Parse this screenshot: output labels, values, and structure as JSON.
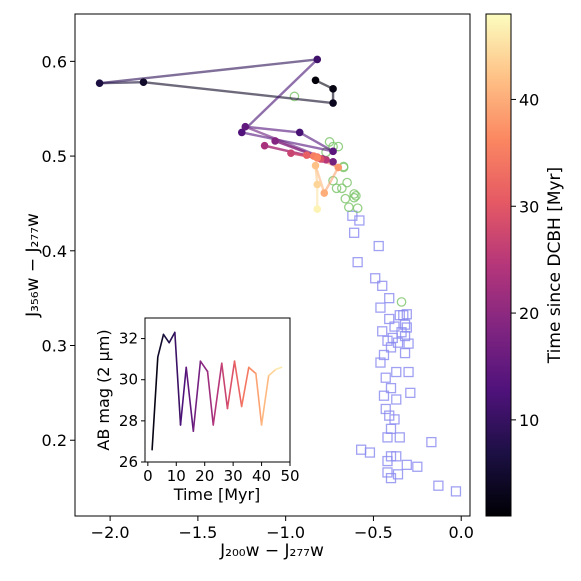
{
  "colors": {
    "track_segments": [
      "#6a2080",
      "#b05aa0",
      "#8a6a98",
      "#1a1040",
      "#9b4a9c",
      "#c04a70",
      "#e9685a",
      "#f6b066",
      "#fcd89a"
    ],
    "green_circle": "#7cc46a",
    "blue_square": "#8a8af0",
    "colormap": [
      "#000004",
      "#1c1044",
      "#4f127b",
      "#812581",
      "#b5367a",
      "#e55964",
      "#fb8761",
      "#fec287",
      "#fcfdbf"
    ]
  },
  "chart_data": [
    {
      "type": "scatter",
      "title": "",
      "xlabel": "J₂₀₀w − J₂₇₇w",
      "ylabel": "J₃₅₆w − J₂₇₇w",
      "xlim": [
        -2.2,
        0.05
      ],
      "ylim": [
        0.12,
        0.65
      ],
      "xticks": [
        "−2.0",
        "−1.5",
        "−1.0",
        "−0.5",
        "0.0"
      ],
      "xtick_values": [
        -2.0,
        -1.5,
        -1.0,
        -0.5,
        0.0
      ],
      "yticks": [
        "0.2",
        "0.3",
        "0.4",
        "0.5",
        "0.6"
      ],
      "ytick_values": [
        0.2,
        0.3,
        0.4,
        0.5,
        0.6
      ],
      "colorbar": {
        "label": "Time since DCBH [Myr]",
        "range": [
          1,
          48
        ],
        "ticks": [
          "10",
          "20",
          "30",
          "40"
        ],
        "tick_values": [
          10,
          20,
          30,
          40
        ]
      },
      "series": [
        {
          "marker": "filled-circle-track",
          "points": [
            {
              "x": -0.83,
              "y": 0.58,
              "t": 1.5
            },
            {
              "x": -0.73,
              "y": 0.571,
              "t": 2.5
            },
            {
              "x": -0.73,
              "y": 0.556,
              "t": 3.5
            },
            {
              "x": -1.81,
              "y": 0.578,
              "t": 4.5
            },
            {
              "x": -2.06,
              "y": 0.577,
              "t": 6.5
            },
            {
              "x": -0.82,
              "y": 0.602,
              "t": 11
            },
            {
              "x": -1.25,
              "y": 0.525,
              "t": 13
            },
            {
              "x": -0.73,
              "y": 0.505,
              "t": 14
            },
            {
              "x": -0.92,
              "y": 0.525,
              "t": 12
            },
            {
              "x": -1.23,
              "y": 0.531,
              "t": 15
            },
            {
              "x": -0.73,
              "y": 0.494,
              "t": 17
            },
            {
              "x": -1.06,
              "y": 0.516,
              "t": 19
            },
            {
              "x": -0.79,
              "y": 0.497,
              "t": 21
            },
            {
              "x": -1.12,
              "y": 0.511,
              "t": 23
            },
            {
              "x": -0.77,
              "y": 0.496,
              "t": 25
            },
            {
              "x": -0.97,
              "y": 0.503,
              "t": 27
            },
            {
              "x": -0.8,
              "y": 0.497,
              "t": 29
            },
            {
              "x": -0.88,
              "y": 0.501,
              "t": 31
            },
            {
              "x": -0.82,
              "y": 0.499,
              "t": 33
            },
            {
              "x": -0.84,
              "y": 0.5,
              "t": 35
            },
            {
              "x": -0.82,
              "y": 0.498,
              "t": 36
            },
            {
              "x": -0.7,
              "y": 0.488,
              "t": 38
            },
            {
              "x": -0.78,
              "y": 0.461,
              "t": 40
            },
            {
              "x": -0.83,
              "y": 0.49,
              "t": 42
            },
            {
              "x": -0.82,
              "y": 0.47,
              "t": 44
            },
            {
              "x": -0.82,
              "y": 0.444,
              "t": 47
            }
          ]
        },
        {
          "marker": "open-circle-green",
          "points": [
            {
              "x": -0.95,
              "y": 0.563
            },
            {
              "x": -0.67,
              "y": 0.489
            },
            {
              "x": -0.7,
              "y": 0.51
            },
            {
              "x": -0.73,
              "y": 0.51
            },
            {
              "x": -0.67,
              "y": 0.488
            },
            {
              "x": -0.73,
              "y": 0.474
            },
            {
              "x": -0.71,
              "y": 0.466
            },
            {
              "x": -0.65,
              "y": 0.472
            },
            {
              "x": -0.68,
              "y": 0.466
            },
            {
              "x": -0.66,
              "y": 0.455
            },
            {
              "x": -0.61,
              "y": 0.46
            },
            {
              "x": -0.6,
              "y": 0.458
            },
            {
              "x": -0.64,
              "y": 0.446
            },
            {
              "x": -0.59,
              "y": 0.445
            },
            {
              "x": -0.61,
              "y": 0.456
            },
            {
              "x": -0.34,
              "y": 0.346
            },
            {
              "x": -0.77,
              "y": 0.504
            },
            {
              "x": -0.75,
              "y": 0.515
            }
          ]
        },
        {
          "marker": "open-square-blue",
          "points": [
            {
              "x": -0.62,
              "y": 0.437
            },
            {
              "x": -0.58,
              "y": 0.432
            },
            {
              "x": -0.61,
              "y": 0.419
            },
            {
              "x": -0.47,
              "y": 0.405
            },
            {
              "x": -0.59,
              "y": 0.388
            },
            {
              "x": -0.49,
              "y": 0.371
            },
            {
              "x": -0.45,
              "y": 0.363
            },
            {
              "x": -0.41,
              "y": 0.35
            },
            {
              "x": -0.46,
              "y": 0.34
            },
            {
              "x": -0.35,
              "y": 0.332
            },
            {
              "x": -0.33,
              "y": 0.332
            },
            {
              "x": -0.31,
              "y": 0.333
            },
            {
              "x": -0.41,
              "y": 0.328
            },
            {
              "x": -0.38,
              "y": 0.32
            },
            {
              "x": -0.32,
              "y": 0.322
            },
            {
              "x": -0.34,
              "y": 0.314
            },
            {
              "x": -0.31,
              "y": 0.319
            },
            {
              "x": -0.32,
              "y": 0.31
            },
            {
              "x": -0.45,
              "y": 0.315
            },
            {
              "x": -0.42,
              "y": 0.305
            },
            {
              "x": -0.4,
              "y": 0.298
            },
            {
              "x": -0.39,
              "y": 0.308
            },
            {
              "x": -0.36,
              "y": 0.303
            },
            {
              "x": -0.3,
              "y": 0.302
            },
            {
              "x": -0.44,
              "y": 0.29
            },
            {
              "x": -0.32,
              "y": 0.292
            },
            {
              "x": -0.46,
              "y": 0.282
            },
            {
              "x": -0.37,
              "y": 0.272
            },
            {
              "x": -0.43,
              "y": 0.266
            },
            {
              "x": -0.3,
              "y": 0.272
            },
            {
              "x": -0.4,
              "y": 0.255
            },
            {
              "x": -0.44,
              "y": 0.247
            },
            {
              "x": -0.37,
              "y": 0.243
            },
            {
              "x": -0.29,
              "y": 0.25
            },
            {
              "x": -0.43,
              "y": 0.233
            },
            {
              "x": -0.41,
              "y": 0.226
            },
            {
              "x": -0.38,
              "y": 0.222
            },
            {
              "x": -0.4,
              "y": 0.212
            },
            {
              "x": -0.42,
              "y": 0.203
            },
            {
              "x": -0.35,
              "y": 0.203
            },
            {
              "x": -0.4,
              "y": 0.183
            },
            {
              "x": -0.42,
              "y": 0.178
            },
            {
              "x": -0.37,
              "y": 0.183
            },
            {
              "x": -0.31,
              "y": 0.174
            },
            {
              "x": -0.25,
              "y": 0.172
            },
            {
              "x": -0.17,
              "y": 0.198
            },
            {
              "x": -0.36,
              "y": 0.164
            },
            {
              "x": -0.42,
              "y": 0.166
            },
            {
              "x": -0.52,
              "y": 0.187
            },
            {
              "x": -0.57,
              "y": 0.19
            },
            {
              "x": -0.13,
              "y": 0.152
            },
            {
              "x": -0.03,
              "y": 0.146
            },
            {
              "x": -0.4,
              "y": 0.16
            }
          ]
        }
      ]
    },
    {
      "type": "line",
      "title": "",
      "xlabel": "Time [Myr]",
      "ylabel": "AB mag (2 μm)",
      "xlim": [
        -1,
        50
      ],
      "ylim": [
        26,
        33
      ],
      "xticks": [
        "0",
        "10",
        "20",
        "30",
        "40",
        "50"
      ],
      "xtick_values": [
        0,
        10,
        20,
        30,
        40,
        50
      ],
      "yticks": [
        "26",
        "28",
        "30",
        "32"
      ],
      "ytick_values": [
        26,
        28,
        30,
        32
      ],
      "series": [
        {
          "x": [
            1.5,
            3.5,
            5.5,
            7.5,
            9.5,
            11.5,
            13.5,
            16,
            18.5,
            21,
            23,
            26,
            28,
            30.5,
            33,
            35.5,
            38,
            40,
            42.5,
            45,
            47
          ],
          "y": [
            26.6,
            31.1,
            32.2,
            31.8,
            32.3,
            27.8,
            30.6,
            27.5,
            30.9,
            30.4,
            27.8,
            30.8,
            28.6,
            30.9,
            28.7,
            30.6,
            30.3,
            27.8,
            30.2,
            30.5,
            30.6
          ]
        }
      ]
    }
  ]
}
